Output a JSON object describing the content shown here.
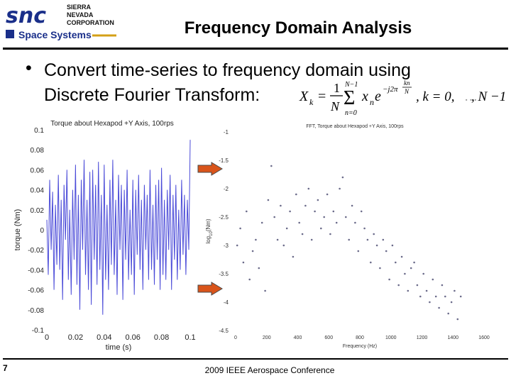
{
  "header": {
    "logo": {
      "mark": "snc",
      "company": [
        "SIERRA",
        "NEVADA",
        "CORPORATION"
      ],
      "division": "Space Systems"
    },
    "title": "Frequency Domain Analysis"
  },
  "bullet": {
    "marker": "•",
    "line1": "Convert time-series to frequency domain using",
    "line2": "Discrete Fourier Transform:",
    "formula": {
      "lhs": "X",
      "sub": "k",
      "eq": "=",
      "frac_num": "1",
      "frac_den": "N",
      "sum_top": "N−1",
      "sum_bottom": "n=0",
      "term": "x",
      "term_sub": "n",
      "exp_base": "e",
      "exp": "−j2π",
      "exp_frac_num": "kn",
      "exp_frac_den": "N",
      "cond1": ", k = 0,",
      "cond_gap": "…",
      "cond2": ", N −1"
    }
  },
  "footer": {
    "page_number": "7",
    "text": "2009 IEEE Aerospace Conference"
  },
  "colors": {
    "series_time": "#4a4ad8",
    "series_freq": "#6b6b8a",
    "arrow_fill": "#d9541a",
    "arrow_stroke": "#4a4a4a",
    "axis": "#000000"
  },
  "icons": {
    "arrow": "right-arrow-icon",
    "logo": "snc-logo-icon"
  },
  "chart_data": [
    {
      "type": "line",
      "title": "Torque about Hexapod +Y Axis, 100rps",
      "xlabel": "time (s)",
      "ylabel": "torque (Nm)",
      "xlim": [
        0,
        0.1
      ],
      "ylim": [
        -0.1,
        0.1
      ],
      "x_ticks": [
        "0",
        "0.02",
        "0.04",
        "0.06",
        "0.08",
        "0.1"
      ],
      "y_ticks": [
        "0.1",
        "0.08",
        "0.06",
        "0.04",
        "0.02",
        "0",
        "-0.02",
        "-0.04",
        "-0.06",
        "-0.08",
        "-0.1"
      ],
      "series": [
        {
          "x": [
            0,
            0.001,
            0.002,
            0.003,
            0.004,
            0.005,
            0.006,
            0.007,
            0.008,
            0.009,
            0.01,
            0.011,
            0.012,
            0.013,
            0.014,
            0.015,
            0.016,
            0.017,
            0.018,
            0.019,
            0.02,
            0.021,
            0.022,
            0.023,
            0.024,
            0.025,
            0.026,
            0.027,
            0.028,
            0.029,
            0.03,
            0.031,
            0.032,
            0.033,
            0.034,
            0.035,
            0.036,
            0.037,
            0.038,
            0.039,
            0.04,
            0.041,
            0.042,
            0.043,
            0.044,
            0.045,
            0.046,
            0.047,
            0.048,
            0.049,
            0.05,
            0.051,
            0.052,
            0.053,
            0.054,
            0.055,
            0.056,
            0.057,
            0.058,
            0.059,
            0.06,
            0.061,
            0.062,
            0.063,
            0.064,
            0.065,
            0.066,
            0.067,
            0.068,
            0.069,
            0.07,
            0.071,
            0.072,
            0.073,
            0.074,
            0.075,
            0.076,
            0.077,
            0.078,
            0.079,
            0.08,
            0.081,
            0.082,
            0.083,
            0.084,
            0.085,
            0.086,
            0.087,
            0.088,
            0.089,
            0.09,
            0.091,
            0.092,
            0.093,
            0.094,
            0.095,
            0.096,
            0.097,
            0.098,
            0.099,
            0.1
          ],
          "y": [
            0.01,
            -0.045,
            0.05,
            -0.02,
            0.038,
            -0.06,
            0.025,
            -0.035,
            0.055,
            -0.04,
            0.03,
            -0.07,
            0.045,
            -0.01,
            0.06,
            -0.05,
            0.02,
            -0.065,
            0.04,
            -0.03,
            0.065,
            -0.055,
            0.035,
            -0.08,
            0.05,
            -0.02,
            0.07,
            -0.045,
            0.03,
            -0.06,
            0.058,
            -0.075,
            0.06,
            -0.03,
            0.045,
            -0.055,
            0.068,
            -0.04,
            0.035,
            -0.085,
            0.065,
            -0.05,
            0.025,
            -0.06,
            0.05,
            -0.035,
            0.07,
            -0.045,
            0.03,
            -0.065,
            0.055,
            -0.02,
            0.045,
            -0.07,
            0.04,
            -0.03,
            0.06,
            -0.05,
            0.02,
            -0.045,
            0.05,
            -0.065,
            0.04,
            -0.025,
            0.055,
            -0.04,
            0.03,
            -0.06,
            0.045,
            -0.02,
            0.035,
            -0.05,
            0.06,
            -0.04,
            0.025,
            -0.055,
            0.045,
            -0.03,
            0.05,
            -0.06,
            0.062,
            -0.045,
            0.03,
            -0.05,
            0.04,
            -0.02,
            0.055,
            -0.06,
            0.035,
            -0.03,
            0.045,
            -0.05,
            0.02,
            -0.04,
            0.05,
            -0.025,
            0.035,
            -0.045,
            0.03,
            -0.02,
            0.09
          ]
        }
      ]
    },
    {
      "type": "scatter",
      "title": "FFT, Torque about Hexapod +Y Axis, 100rps",
      "xlabel": "Frequency (Hz)",
      "ylabel_base": "log",
      "ylabel_sub": "10",
      "ylabel_unit": "(Nm)",
      "xlim": [
        0,
        1600
      ],
      "ylim": [
        -4.5,
        -1
      ],
      "x_ticks": [
        "0",
        "200",
        "400",
        "600",
        "800",
        "1000",
        "1200",
        "1400",
        "1600"
      ],
      "y_ticks": [
        "-1",
        "-1.5",
        "-2",
        "-2.5",
        "-3",
        "-3.5",
        "-4",
        "-4.5"
      ],
      "series": [
        {
          "x": [
            10,
            30,
            50,
            70,
            90,
            110,
            130,
            150,
            170,
            190,
            210,
            230,
            250,
            270,
            290,
            310,
            330,
            350,
            370,
            390,
            410,
            430,
            450,
            470,
            490,
            510,
            530,
            550,
            570,
            590,
            610,
            630,
            650,
            670,
            690,
            710,
            730,
            750,
            770,
            790,
            810,
            830,
            850,
            870,
            890,
            910,
            930,
            950,
            970,
            990,
            1010,
            1030,
            1050,
            1070,
            1090,
            1110,
            1130,
            1150,
            1170,
            1190,
            1210,
            1230,
            1250,
            1270,
            1290,
            1310,
            1330,
            1350,
            1370,
            1390,
            1410,
            1430,
            1450
          ],
          "y": [
            -3.0,
            -2.7,
            -3.3,
            -2.4,
            -3.6,
            -3.1,
            -2.9,
            -3.4,
            -2.6,
            -3.8,
            -2.2,
            -1.6,
            -2.5,
            -2.9,
            -2.3,
            -3.0,
            -2.7,
            -2.4,
            -3.2,
            -2.1,
            -2.6,
            -2.8,
            -2.3,
            -2.0,
            -2.9,
            -2.4,
            -2.2,
            -2.7,
            -2.5,
            -2.1,
            -2.8,
            -2.4,
            -2.6,
            -2.0,
            -1.8,
            -2.5,
            -2.9,
            -2.3,
            -2.6,
            -3.1,
            -2.4,
            -2.7,
            -2.9,
            -3.3,
            -2.8,
            -3.0,
            -3.4,
            -2.9,
            -3.1,
            -3.6,
            -3.0,
            -3.3,
            -3.7,
            -3.2,
            -3.5,
            -3.8,
            -3.4,
            -3.3,
            -3.7,
            -3.9,
            -3.5,
            -3.8,
            -4.0,
            -3.6,
            -3.9,
            -4.1,
            -3.7,
            -3.9,
            -4.2,
            -4.0,
            -3.8,
            -4.3,
            -3.9
          ]
        }
      ]
    }
  ]
}
